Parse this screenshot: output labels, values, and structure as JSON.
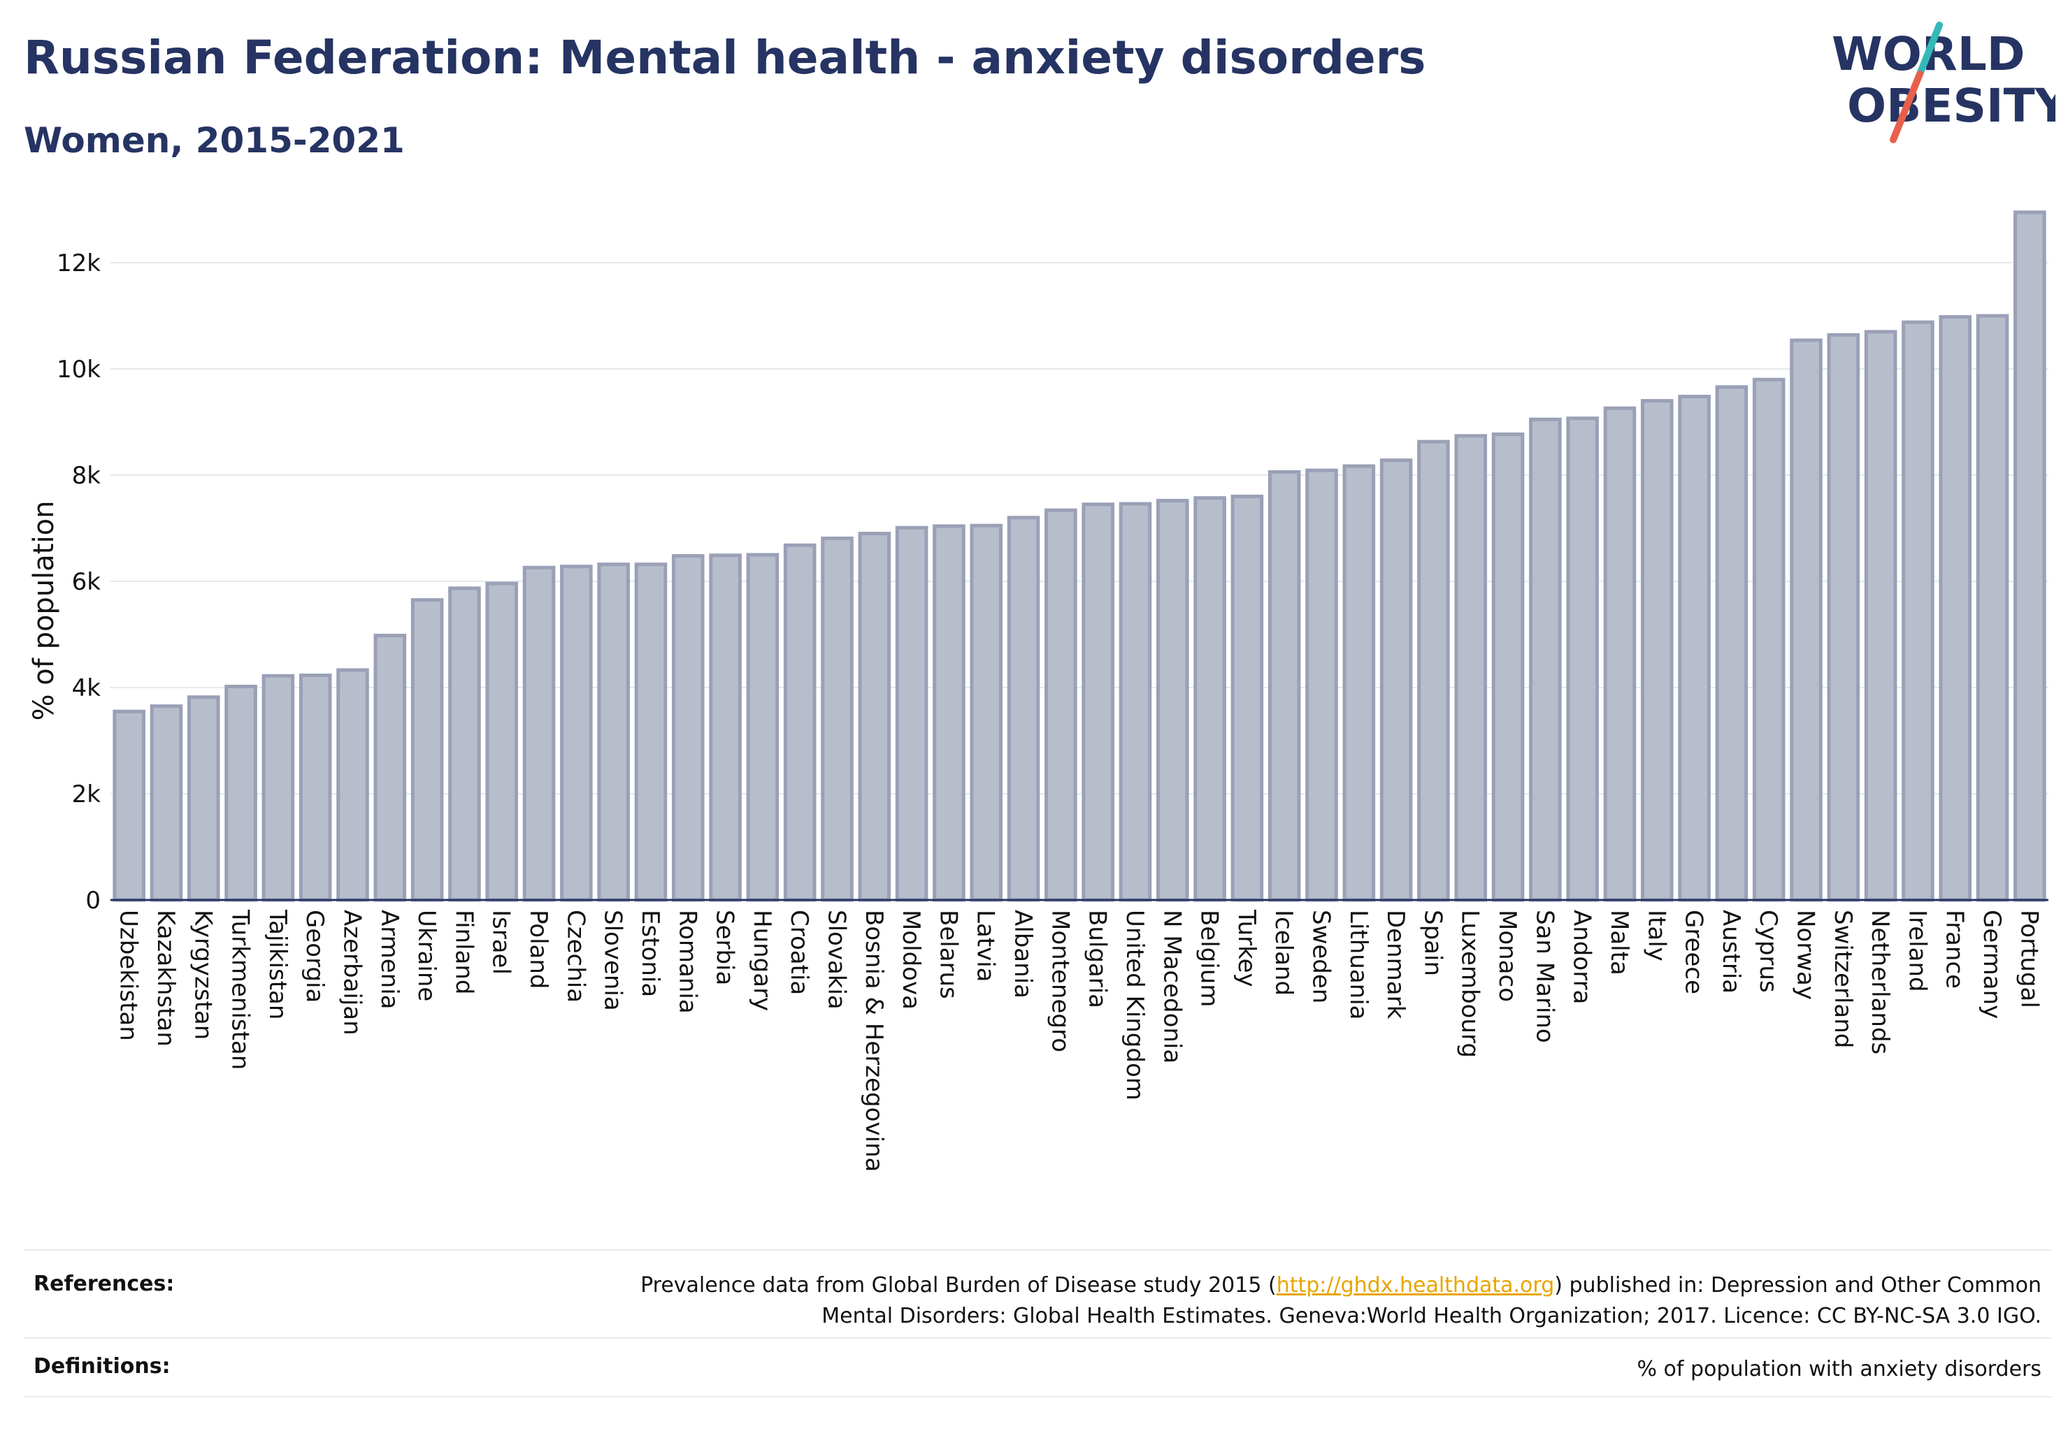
{
  "title": "Russian Federation: Mental health - anxiety disorders",
  "subtitle": "Women, 2015-2021",
  "logo": {
    "line1": "WORLD",
    "line2": "OBESITY",
    "accent_teal": "#33b9b8",
    "accent_red": "#e8604c"
  },
  "chart_data": {
    "type": "bar",
    "title": "Russian Federation: Mental health - anxiety disorders",
    "subtitle": "Women, 2015-2021",
    "xlabel": "",
    "ylabel": "% of population",
    "ylim": [
      0,
      13000
    ],
    "yticks": [
      0,
      2000,
      4000,
      6000,
      8000,
      10000,
      12000
    ],
    "yticklabels": [
      "0",
      "2k",
      "4k",
      "6k",
      "8k",
      "10k",
      "12k"
    ],
    "grid": true,
    "bar_color": "#b8bdcc",
    "bar_edge_color": "#9aa0b6",
    "categories": [
      "Uzbekistan",
      "Kazakhstan",
      "Kyrgyzstan",
      "Turkmenistan",
      "Tajikistan",
      "Georgia",
      "Azerbaijan",
      "Armenia",
      "Ukraine",
      "Finland",
      "Israel",
      "Poland",
      "Czechia",
      "Slovenia",
      "Estonia",
      "Romania",
      "Serbia",
      "Hungary",
      "Croatia",
      "Slovakia",
      "Bosnia & Herzegovina",
      "Moldova",
      "Belarus",
      "Latvia",
      "Albania",
      "Montenegro",
      "Bulgaria",
      "United Kingdom",
      "N Macedonia",
      "Belgium",
      "Turkey",
      "Iceland",
      "Sweden",
      "Lithuania",
      "Denmark",
      "Spain",
      "Luxembourg",
      "Monaco",
      "San Marino",
      "Andorra",
      "Malta",
      "Italy",
      "Greece",
      "Austria",
      "Cyprus",
      "Norway",
      "Switzerland",
      "Netherlands",
      "Ireland",
      "France",
      "Germany",
      "Portugal"
    ],
    "values": [
      3550,
      3650,
      3820,
      4020,
      4220,
      4230,
      4330,
      4980,
      5650,
      5870,
      5960,
      6260,
      6280,
      6320,
      6320,
      6480,
      6490,
      6500,
      6680,
      6810,
      6900,
      7010,
      7040,
      7050,
      7200,
      7340,
      7450,
      7460,
      7520,
      7570,
      7600,
      8060,
      8090,
      8170,
      8280,
      8630,
      8740,
      8770,
      9050,
      9070,
      9260,
      9400,
      9480,
      9660,
      9800,
      10540,
      10640,
      10700,
      10880,
      10980,
      11000,
      12950
    ]
  },
  "footer": {
    "references_label": "References:",
    "references_text_before": "Prevalence data from Global Burden of Disease study 2015 (",
    "references_link": "http://ghdx.healthdata.org",
    "references_text_after": ") published in: Depression and Other Common",
    "references_line2": "Mental Disorders: Global Health Estimates. Geneva:World Health Organization; 2017. Licence: CC BY-NC-SA 3.0 IGO.",
    "definitions_label": "Definitions:",
    "definitions_text": "% of population with anxiety disorders"
  }
}
